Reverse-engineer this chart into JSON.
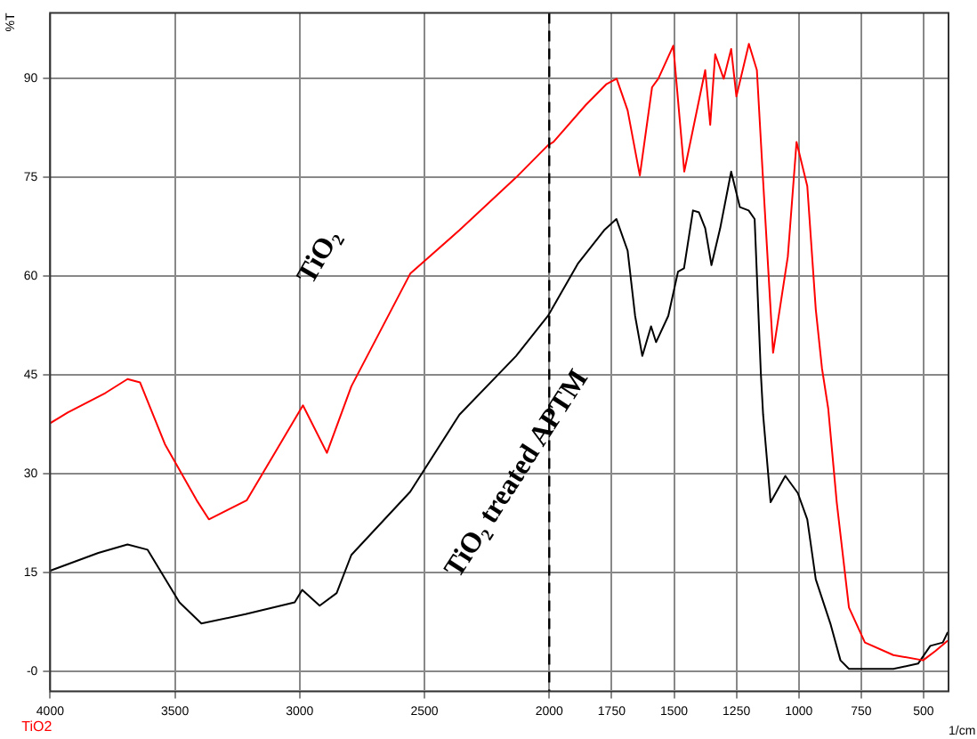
{
  "chart_data": {
    "type": "line",
    "xlabel": "1/cm",
    "ylabel": "%T",
    "xlim": [
      4000,
      400
    ],
    "xticks": [
      4000,
      3500,
      3000,
      2500,
      2000,
      1750,
      1500,
      1250,
      1000,
      750,
      500
    ],
    "ylim": [
      -3,
      100
    ],
    "yticks": [
      {
        "value": 0,
        "label": "-0"
      },
      15,
      30,
      45,
      60,
      75,
      90
    ],
    "grid": true,
    "legend": false,
    "marker": "none",
    "line_style": "solid",
    "ref_lines": [
      {
        "axis": "x",
        "value": 2000,
        "color": "#000000",
        "line_style": "dashed"
      }
    ],
    "annotations": [
      "TiO2"
    ],
    "series": [
      {
        "name": "TiO₂",
        "color": "#ff0000",
        "x": [
          4000,
          3965,
          3930,
          3778,
          3690,
          3640,
          3540,
          3413,
          3364,
          3212,
          2987,
          2891,
          2793,
          2557,
          2360,
          2133,
          2005,
          1983,
          1854,
          1770,
          1730,
          1686,
          1637,
          1588,
          1563,
          1503,
          1459,
          1375,
          1355,
          1335,
          1301,
          1271,
          1250,
          1200,
          1168,
          1143,
          1103,
          1044,
          1009,
          966,
          932,
          907,
          882,
          848,
          799,
          735,
          621,
          502,
          453,
          403
        ],
        "values": [
          37.7,
          38.5,
          39.3,
          42.3,
          44.4,
          43.9,
          34.5,
          26,
          23.1,
          26,
          40.4,
          33.2,
          43.3,
          60.4,
          67,
          75,
          79.9,
          80.4,
          86,
          89.2,
          90,
          85.2,
          75.3,
          88.7,
          90,
          95,
          75.9,
          91.3,
          83,
          93.7,
          90,
          94.5,
          87.3,
          95.3,
          91.3,
          74.5,
          48.4,
          63,
          80.4,
          73.7,
          55,
          46,
          39.9,
          25.7,
          9.7,
          4.4,
          2.5,
          1.7,
          3.1,
          4.7
        ]
      },
      {
        "name": "TiO₂ treated APTM",
        "color": "#000000",
        "x": [
          4000,
          3807,
          3690,
          3610,
          3482,
          3394,
          3217,
          3020,
          2990,
          2920,
          2852,
          2793,
          2557,
          2360,
          2133,
          2005,
          1884,
          1780,
          1731,
          1686,
          1656,
          1627,
          1592,
          1572,
          1523,
          1484,
          1460,
          1424,
          1400,
          1375,
          1350,
          1315,
          1271,
          1236,
          1201,
          1177,
          1152,
          1143,
          1113,
          1054,
          1004,
          966,
          932,
          872,
          833,
          799,
          621,
          522,
          473,
          423,
          403
        ],
        "values": [
          15.3,
          18,
          19.3,
          18.5,
          10.5,
          7.3,
          8.7,
          10.5,
          12.4,
          10,
          11.9,
          17.7,
          27.3,
          39,
          47.9,
          54,
          62,
          67,
          68.7,
          63.9,
          54,
          47.9,
          52.4,
          50,
          54,
          60.7,
          61.2,
          70,
          69.7,
          67.3,
          61.7,
          67.3,
          75.9,
          70.5,
          70,
          68.7,
          45.2,
          39,
          25.7,
          29.7,
          27.1,
          23.1,
          14,
          7.1,
          1.7,
          0.4,
          0.4,
          1.2,
          3.9,
          4.4,
          6
        ]
      }
    ]
  }
}
